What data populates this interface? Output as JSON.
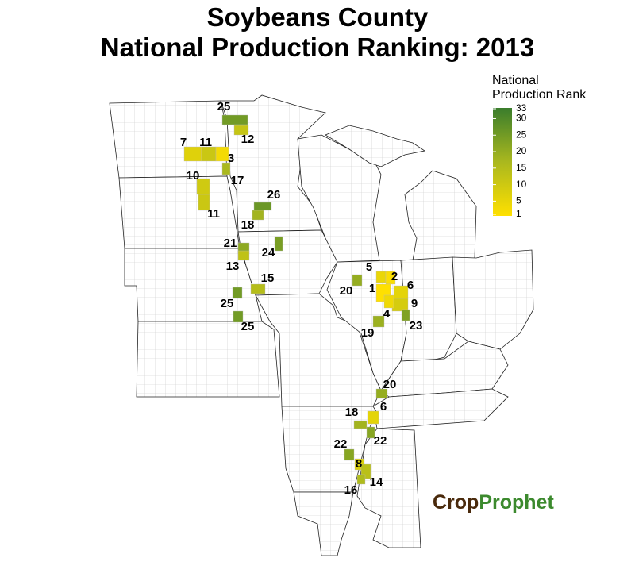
{
  "title": [
    "Soybeans County",
    "National Production Ranking: 2013"
  ],
  "legend": {
    "title": [
      "National",
      "Production Rank"
    ],
    "range": [
      1,
      33
    ],
    "ticks": [
      1,
      5,
      10,
      15,
      20,
      25,
      30,
      33
    ],
    "colors": [
      "#ffe000",
      "#aab81e",
      "#3a7d2c"
    ]
  },
  "counties": [
    25,
    12,
    7,
    11,
    3,
    10,
    17,
    11,
    26,
    18,
    21,
    24,
    13,
    15,
    25,
    25,
    5,
    2,
    20,
    1,
    6,
    9,
    4,
    23,
    19,
    20,
    6,
    18,
    22,
    22,
    8,
    14,
    16
  ],
  "logo": [
    "Crop",
    "Prophet"
  ]
}
